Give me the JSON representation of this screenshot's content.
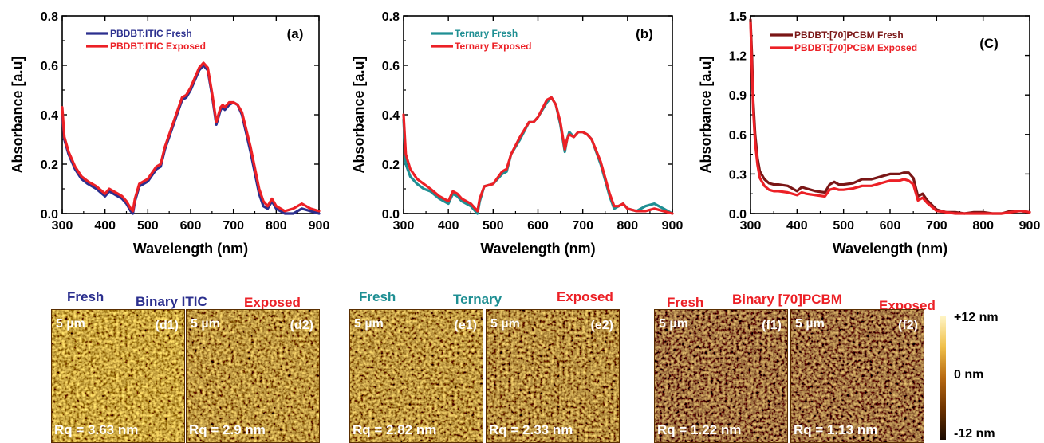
{
  "colors": {
    "navy": "#2b2f8e",
    "red": "#ec2026",
    "teal": "#1f8f93",
    "darkred": "#7a1616",
    "afm_dark": "#6b3400",
    "afm_light": "#f2c24a"
  },
  "chart_data": [
    {
      "type": "line",
      "panel": "(a)",
      "xlabel": "Wavelength (nm)",
      "ylabel": "Absorbance [a.u]",
      "xlim": [
        300,
        900
      ],
      "ylim": [
        0,
        0.8
      ],
      "xticks": [
        "300",
        "400",
        "500",
        "600",
        "700",
        "800",
        "900"
      ],
      "yticks": [
        "0.0",
        "0.2",
        "0.4",
        "0.6",
        "0.8"
      ],
      "series": [
        {
          "name": "PBDBT:ITIC  Fresh",
          "color": "#2b2f8e",
          "width": 3.2,
          "x": [
            300,
            305,
            315,
            330,
            345,
            360,
            380,
            400,
            410,
            420,
            430,
            440,
            450,
            460,
            465,
            470,
            480,
            500,
            520,
            530,
            540,
            560,
            580,
            590,
            600,
            620,
            630,
            640,
            650,
            660,
            670,
            675,
            680,
            690,
            700,
            710,
            720,
            740,
            760,
            770,
            780,
            790,
            800,
            820,
            840,
            860,
            880,
            900
          ],
          "y": [
            0.41,
            0.3,
            0.24,
            0.18,
            0.14,
            0.12,
            0.1,
            0.07,
            0.09,
            0.08,
            0.07,
            0.06,
            0.04,
            0.01,
            0.0,
            0.05,
            0.11,
            0.13,
            0.18,
            0.19,
            0.26,
            0.36,
            0.46,
            0.47,
            0.5,
            0.58,
            0.6,
            0.58,
            0.48,
            0.36,
            0.42,
            0.43,
            0.42,
            0.44,
            0.45,
            0.44,
            0.4,
            0.25,
            0.08,
            0.03,
            0.02,
            0.05,
            0.02,
            0.0,
            0.0,
            0.02,
            0.01,
            0.0
          ]
        },
        {
          "name": "PBDBT:ITIC  Exposed",
          "color": "#ec2026",
          "width": 3.2,
          "x": [
            300,
            305,
            315,
            330,
            345,
            360,
            380,
            400,
            410,
            420,
            430,
            440,
            450,
            460,
            465,
            470,
            480,
            500,
            520,
            530,
            540,
            560,
            580,
            590,
            600,
            620,
            630,
            640,
            650,
            660,
            670,
            675,
            680,
            690,
            700,
            710,
            720,
            740,
            760,
            770,
            780,
            790,
            800,
            820,
            840,
            860,
            880,
            900
          ],
          "y": [
            0.43,
            0.31,
            0.25,
            0.19,
            0.15,
            0.13,
            0.11,
            0.08,
            0.1,
            0.09,
            0.08,
            0.07,
            0.05,
            0.02,
            0.01,
            0.06,
            0.12,
            0.14,
            0.19,
            0.2,
            0.27,
            0.37,
            0.47,
            0.48,
            0.51,
            0.59,
            0.61,
            0.59,
            0.49,
            0.37,
            0.43,
            0.44,
            0.43,
            0.45,
            0.45,
            0.44,
            0.41,
            0.27,
            0.1,
            0.05,
            0.03,
            0.06,
            0.03,
            0.01,
            0.02,
            0.04,
            0.02,
            0.01
          ]
        }
      ],
      "legend": [
        "PBDBT:ITIC  Fresh",
        "PBDBT:ITIC  Exposed"
      ]
    },
    {
      "type": "line",
      "panel": "(b)",
      "xlabel": "Wavelength (nm)",
      "ylabel": "Absorbance [a.u]",
      "xlim": [
        300,
        900
      ],
      "ylim": [
        0,
        0.8
      ],
      "xticks": [
        "300",
        "400",
        "500",
        "600",
        "700",
        "800",
        "900"
      ],
      "yticks": [
        "0.0",
        "0.2",
        "0.4",
        "0.6",
        "0.8"
      ],
      "series": [
        {
          "name": "Ternary  Fresh",
          "color": "#1f8f93",
          "width": 3.2,
          "x": [
            300,
            305,
            315,
            330,
            345,
            360,
            380,
            400,
            410,
            420,
            430,
            440,
            450,
            460,
            465,
            470,
            480,
            500,
            520,
            530,
            540,
            560,
            580,
            590,
            600,
            620,
            630,
            640,
            650,
            660,
            665,
            670,
            680,
            690,
            700,
            710,
            720,
            740,
            760,
            770,
            780,
            790,
            800,
            820,
            840,
            860,
            880,
            900
          ],
          "y": [
            0.38,
            0.2,
            0.15,
            0.12,
            0.1,
            0.09,
            0.06,
            0.04,
            0.08,
            0.07,
            0.05,
            0.04,
            0.03,
            0.01,
            0.0,
            0.05,
            0.11,
            0.12,
            0.16,
            0.17,
            0.24,
            0.3,
            0.37,
            0.37,
            0.39,
            0.45,
            0.47,
            0.44,
            0.36,
            0.25,
            0.3,
            0.33,
            0.31,
            0.33,
            0.33,
            0.32,
            0.3,
            0.2,
            0.07,
            0.02,
            0.03,
            0.04,
            0.02,
            0.01,
            0.03,
            0.04,
            0.02,
            0.0
          ]
        },
        {
          "name": "Ternary Exposed",
          "color": "#ec2026",
          "width": 3.2,
          "x": [
            300,
            305,
            315,
            330,
            345,
            360,
            380,
            400,
            410,
            420,
            430,
            440,
            450,
            460,
            465,
            470,
            480,
            500,
            520,
            530,
            540,
            560,
            580,
            590,
            600,
            620,
            630,
            640,
            650,
            660,
            665,
            670,
            680,
            690,
            700,
            710,
            720,
            740,
            760,
            770,
            780,
            790,
            800,
            820,
            840,
            860,
            880,
            900
          ],
          "y": [
            0.4,
            0.24,
            0.18,
            0.14,
            0.12,
            0.1,
            0.07,
            0.05,
            0.09,
            0.08,
            0.06,
            0.05,
            0.04,
            0.02,
            0.01,
            0.06,
            0.11,
            0.12,
            0.17,
            0.18,
            0.24,
            0.31,
            0.37,
            0.37,
            0.39,
            0.46,
            0.47,
            0.44,
            0.37,
            0.26,
            0.3,
            0.32,
            0.31,
            0.33,
            0.33,
            0.32,
            0.3,
            0.21,
            0.08,
            0.03,
            0.03,
            0.04,
            0.02,
            0.01,
            0.01,
            0.02,
            0.01,
            0.0
          ]
        }
      ],
      "legend": [
        "Ternary  Fresh",
        "Ternary Exposed"
      ]
    },
    {
      "type": "line",
      "panel": "(C)",
      "xlabel": "Wavelength (nm)",
      "ylabel": "Absorbance [a.u]",
      "xlim": [
        300,
        900
      ],
      "ylim": [
        0,
        1.5
      ],
      "xticks": [
        "300",
        "400",
        "500",
        "600",
        "700",
        "800",
        "900"
      ],
      "yticks": [
        "0.0",
        "0.3",
        "0.6",
        "0.9",
        "1.2",
        "1.5"
      ],
      "series": [
        {
          "name": "PBDBT:[70]PCBM  Fresh",
          "color": "#7a1616",
          "width": 3.2,
          "x": [
            300,
            303,
            306,
            310,
            315,
            320,
            330,
            340,
            350,
            360,
            380,
            400,
            410,
            420,
            440,
            460,
            470,
            480,
            490,
            500,
            520,
            540,
            560,
            580,
            600,
            620,
            630,
            640,
            650,
            660,
            670,
            680,
            700,
            720,
            740,
            760,
            780,
            800,
            820,
            840,
            860,
            880,
            900
          ],
          "y": [
            1.47,
            1.2,
            0.85,
            0.6,
            0.42,
            0.32,
            0.26,
            0.23,
            0.22,
            0.22,
            0.21,
            0.17,
            0.2,
            0.19,
            0.17,
            0.16,
            0.22,
            0.24,
            0.22,
            0.22,
            0.23,
            0.26,
            0.26,
            0.28,
            0.3,
            0.3,
            0.31,
            0.31,
            0.27,
            0.13,
            0.15,
            0.1,
            0.03,
            0.01,
            0.01,
            0.0,
            0.01,
            0.01,
            0.0,
            0.0,
            0.02,
            0.02,
            0.01
          ]
        },
        {
          "name": "PBDBT:[70]PCBM Exposed",
          "color": "#ec2026",
          "width": 3.2,
          "x": [
            300,
            303,
            306,
            310,
            315,
            320,
            330,
            340,
            350,
            360,
            380,
            400,
            410,
            420,
            440,
            460,
            470,
            480,
            490,
            500,
            520,
            540,
            560,
            580,
            600,
            620,
            630,
            640,
            650,
            660,
            670,
            680,
            700,
            720,
            740,
            760,
            780,
            800,
            820,
            840,
            860,
            880,
            900
          ],
          "y": [
            1.45,
            1.1,
            0.78,
            0.54,
            0.37,
            0.27,
            0.21,
            0.18,
            0.17,
            0.17,
            0.16,
            0.14,
            0.16,
            0.15,
            0.14,
            0.13,
            0.18,
            0.19,
            0.18,
            0.18,
            0.19,
            0.21,
            0.21,
            0.23,
            0.25,
            0.25,
            0.26,
            0.25,
            0.22,
            0.1,
            0.12,
            0.08,
            0.02,
            0.01,
            0.0,
            0.0,
            0.0,
            0.0,
            0.0,
            0.0,
            0.01,
            0.02,
            0.01
          ]
        }
      ],
      "legend": [
        "PBDBT:[70]PCBM  Fresh",
        "PBDBT:[70]PCBM Exposed"
      ]
    }
  ],
  "afm": {
    "groups": [
      {
        "fresh": "Fresh",
        "title": "Binary ITIC",
        "exposed": "Exposed"
      },
      {
        "fresh": "Fresh",
        "title": "Ternary",
        "exposed": "Exposed"
      },
      {
        "fresh": "Fresh",
        "title": "Binary [70]PCBM",
        "exposed": "Exposed"
      }
    ],
    "images": [
      {
        "id": "(d1)",
        "scale": "5 µm",
        "rq": "Rq = 3.63 nm"
      },
      {
        "id": "(d2)",
        "scale": "5 µm",
        "rq": "Rq = 2.9 nm"
      },
      {
        "id": "(e1)",
        "scale": "5 µm",
        "rq": "Rq = 2.82 nm"
      },
      {
        "id": "(e2)",
        "scale": "5 µm",
        "rq": "Rq = 2.33 nm"
      },
      {
        "id": "(f1)",
        "scale": "5 µm",
        "rq": "Rq = 1.22 nm"
      },
      {
        "id": "(f2)",
        "scale": "5 µm",
        "rq": "Rq = 1.13 nm"
      }
    ],
    "scale_bar": {
      "top": "+12 nm",
      "mid": "0 nm",
      "bottom": "-12 nm"
    }
  }
}
